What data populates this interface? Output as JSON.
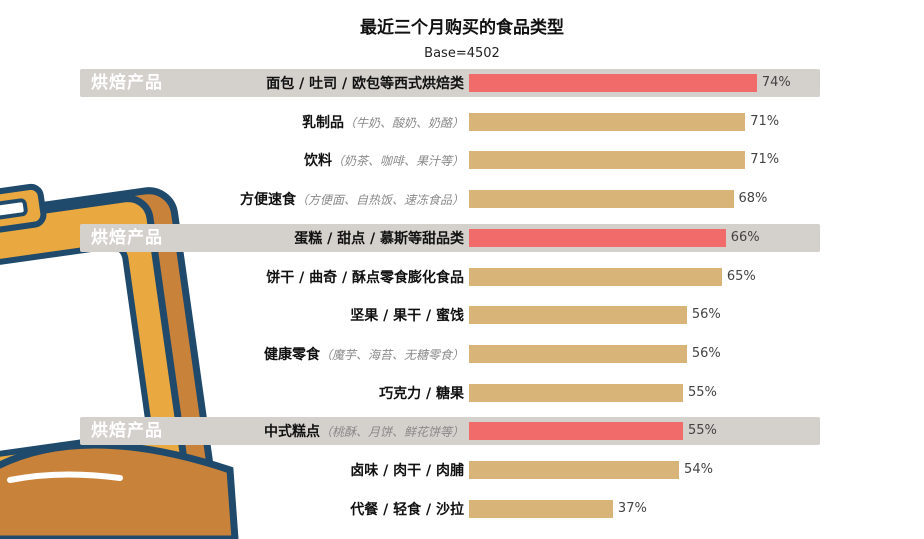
{
  "title": "最近三个月购买的食品类型",
  "base": "Base=4502",
  "highlight_tag": "烘焙产品",
  "colors": {
    "highlight_bar": "#f26b6b",
    "normal_bar": "#d9b479",
    "band": "#d4d0cc"
  },
  "chart_data": {
    "type": "bar",
    "orientation": "horizontal",
    "title": "最近三个月购买的食品类型",
    "subtitle": "Base=4502",
    "categories": [
      {
        "label": "面包 / 吐司 / 欧包等西式烘焙类",
        "note": "",
        "highlight": true
      },
      {
        "label": "乳制品",
        "note": "（牛奶、酸奶、奶酪）",
        "highlight": false
      },
      {
        "label": "饮料",
        "note": "（奶茶、咖啡、果汁等）",
        "highlight": false
      },
      {
        "label": "方便速食",
        "note": "（方便面、自热饭、速冻食品）",
        "highlight": false
      },
      {
        "label": "蛋糕 / 甜点 / 慕斯等甜品类",
        "note": "",
        "highlight": true
      },
      {
        "label": "饼干 / 曲奇 / 酥点零食膨化食品",
        "note": "",
        "highlight": false
      },
      {
        "label": "坚果 / 果干 / 蜜饯",
        "note": "",
        "highlight": false
      },
      {
        "label": "健康零食",
        "note": "（魔芋、海苔、无糖零食）",
        "highlight": false
      },
      {
        "label": "巧克力 / 糖果",
        "note": "",
        "highlight": false
      },
      {
        "label": "中式糕点",
        "note": "（桃酥、月饼、鲜花饼等）",
        "highlight": true
      },
      {
        "label": "卤味 / 肉干 / 肉脯",
        "note": "",
        "highlight": false
      },
      {
        "label": "代餐 / 轻食 / 沙拉",
        "note": "",
        "highlight": false
      }
    ],
    "values": [
      74,
      71,
      71,
      68,
      66,
      65,
      56,
      56,
      55,
      55,
      54,
      37
    ],
    "value_labels": [
      "74%",
      "71%",
      "71%",
      "68%",
      "66%",
      "65%",
      "56%",
      "56%",
      "55%",
      "55%",
      "54%",
      "37%"
    ],
    "unit": "%",
    "xlim": [
      0,
      100
    ]
  }
}
